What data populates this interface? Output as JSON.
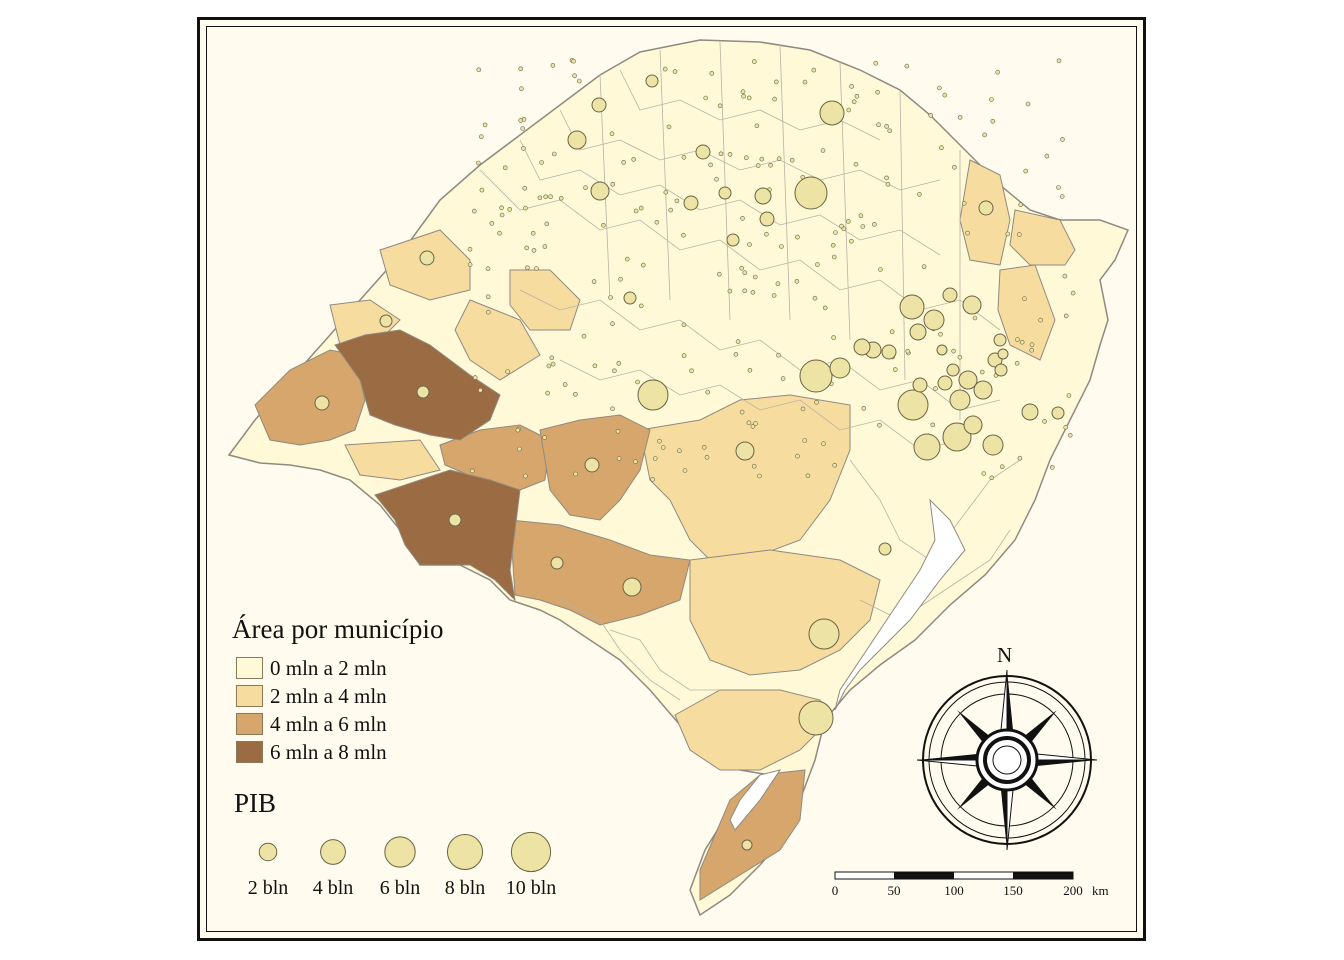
{
  "legend_area": {
    "title": "Área por município",
    "classes": [
      {
        "label": "0 mln a 2 mln",
        "color": "#fff9d8"
      },
      {
        "label": "2 mln a 4 mln",
        "color": "#f7dca0"
      },
      {
        "label": "4 mln a 6 mln",
        "color": "#d6a66d"
      },
      {
        "label": "6 mln a 8 mln",
        "color": "#9b6b43"
      }
    ]
  },
  "legend_pib": {
    "title": "PIB",
    "symbols": [
      {
        "label": "2 bln",
        "value": 2
      },
      {
        "label": "4 bln",
        "value": 4
      },
      {
        "label": "6 bln",
        "value": 6
      },
      {
        "label": "8 bln",
        "value": 8
      },
      {
        "label": "10 bln",
        "value": 10
      }
    ],
    "symbol_color": "#ece3a4"
  },
  "north_arrow": {
    "label": "N"
  },
  "scale_bar": {
    "ticks": [
      "0",
      "50",
      "100",
      "150",
      "200"
    ],
    "unit": "km"
  },
  "colors": {
    "border": "#8f8a80",
    "frame": "#111111",
    "background": "#fffcef"
  }
}
